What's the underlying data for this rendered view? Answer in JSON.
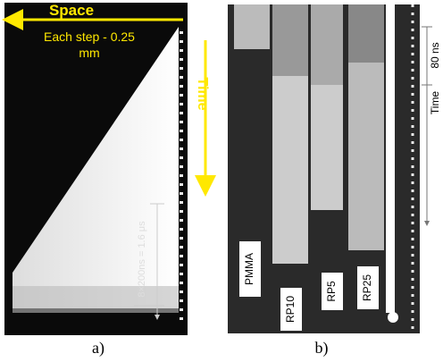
{
  "panels": [
    {
      "label": "a)",
      "annotations": {
        "space": "Space",
        "step_line1": "Each step - 0.25",
        "step_line2": "mm",
        "time": "Time",
        "scale": "8×200ns = 1.6 μs"
      }
    },
    {
      "label": "b)",
      "samples": [
        "PMMA",
        "RP10",
        "RP5",
        "RP25"
      ],
      "annotations": {
        "interval": "80 ns",
        "time": "Time"
      }
    }
  ]
}
